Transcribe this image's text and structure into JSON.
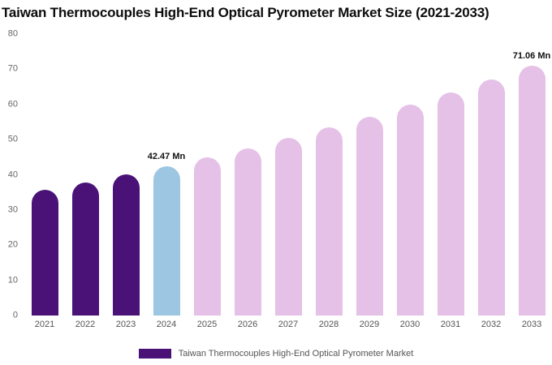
{
  "chart_data": {
    "type": "bar",
    "title": "Taiwan Thermocouples High-End Optical Pyrometer Market Size (2021-2033)",
    "categories": [
      "2021",
      "2022",
      "2023",
      "2024",
      "2025",
      "2026",
      "2027",
      "2028",
      "2029",
      "2030",
      "2031",
      "2032",
      "2033"
    ],
    "values": [
      35.8,
      37.9,
      40.1,
      42.47,
      45.0,
      47.6,
      50.4,
      53.4,
      56.6,
      59.9,
      63.4,
      67.2,
      71.06
    ],
    "unit": "Mn",
    "data_labels": [
      null,
      null,
      null,
      "42.47 Mn",
      null,
      null,
      null,
      null,
      null,
      null,
      null,
      null,
      "71.06 Mn"
    ],
    "color_keys": [
      "historical",
      "historical",
      "historical",
      "current",
      "forecast",
      "forecast",
      "forecast",
      "forecast",
      "forecast",
      "forecast",
      "forecast",
      "forecast",
      "forecast"
    ],
    "palette": {
      "historical": "#4A1277",
      "current": "#9CC6E1",
      "forecast": "#E5C0E7"
    },
    "xlabel": "",
    "ylabel": "",
    "ylim": [
      0,
      80
    ],
    "yticks": [
      0,
      10,
      20,
      30,
      40,
      50,
      60,
      70,
      80
    ],
    "grid": false,
    "legend_position": "bottom",
    "legend": {
      "label": "Taiwan Thermocouples High-End Optical Pyrometer Market",
      "swatch_color": "#4A1277"
    }
  }
}
